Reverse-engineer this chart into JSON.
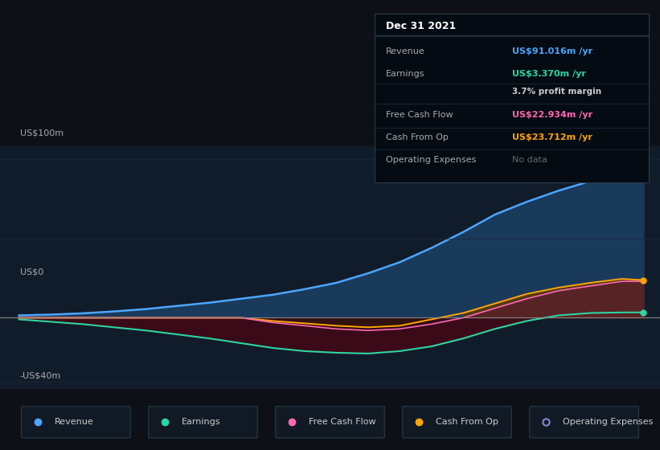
{
  "bg_color": "#0d1117",
  "plot_bg_color": "#111c2b",
  "title": "Dec 31 2021",
  "info_box_rows": [
    {
      "label": "Revenue",
      "value": "US$91.016m",
      "suffix": " /yr",
      "value_color": "#4da6ff",
      "bold_value": true,
      "sub": null
    },
    {
      "label": "Earnings",
      "value": "US$3.370m",
      "suffix": " /yr",
      "value_color": "#2cd5a2",
      "bold_value": true,
      "sub": "3.7% profit margin"
    },
    {
      "label": "Free Cash Flow",
      "value": "US$22.934m",
      "suffix": " /yr",
      "value_color": "#ff69b4",
      "bold_value": true,
      "sub": null
    },
    {
      "label": "Cash From Op",
      "value": "US$23.712m",
      "suffix": " /yr",
      "value_color": "#ffa500",
      "bold_value": true,
      "sub": null
    },
    {
      "label": "Operating Expenses",
      "value": "No data",
      "suffix": "",
      "value_color": "#666666",
      "bold_value": false,
      "sub": null
    }
  ],
  "x_years": [
    2017.0,
    2017.25,
    2017.5,
    2017.75,
    2018.0,
    2018.25,
    2018.5,
    2018.75,
    2019.0,
    2019.25,
    2019.5,
    2019.75,
    2020.0,
    2020.25,
    2020.5,
    2020.75,
    2021.0,
    2021.25,
    2021.5,
    2021.75,
    2021.92
  ],
  "revenue": [
    1.5,
    2.0,
    2.8,
    4.0,
    5.5,
    7.5,
    9.5,
    12.0,
    14.5,
    18.0,
    22.0,
    28.0,
    35.0,
    44.0,
    54.0,
    65.0,
    73.0,
    80.0,
    86.0,
    91.0,
    91.0
  ],
  "earnings": [
    -1.0,
    -2.5,
    -4.0,
    -6.0,
    -8.0,
    -10.5,
    -13.0,
    -16.0,
    -19.0,
    -21.0,
    -22.0,
    -22.5,
    -21.0,
    -18.0,
    -13.0,
    -7.0,
    -2.0,
    1.5,
    3.0,
    3.37,
    3.37
  ],
  "free_cash_flow": [
    0.0,
    0.0,
    0.0,
    0.0,
    0.0,
    0.0,
    0.0,
    0.0,
    -3.0,
    -5.0,
    -7.0,
    -8.0,
    -7.0,
    -4.0,
    0.0,
    6.0,
    12.0,
    17.0,
    20.0,
    22.934,
    22.934
  ],
  "cash_from_op": [
    0.0,
    0.0,
    0.0,
    0.0,
    0.0,
    0.0,
    0.0,
    0.0,
    -2.0,
    -3.5,
    -5.0,
    -6.0,
    -5.0,
    -1.0,
    3.0,
    9.0,
    15.0,
    19.0,
    22.0,
    24.5,
    23.712
  ],
  "ylim": [
    -45,
    108
  ],
  "xlim": [
    2016.85,
    2022.05
  ],
  "y_label_100": "US$100m",
  "y_label_0": "US$0",
  "y_label_n40": "-US$40m",
  "x_ticks": [
    2017,
    2018,
    2019,
    2020,
    2021
  ],
  "revenue_color": "#4da6ff",
  "revenue_fill": "#1a3a5c",
  "earnings_color": "#2cd5a2",
  "earnings_fill": "#0a3028",
  "fcf_color": "#ff69b4",
  "fcf_fill": "#5c1a30",
  "cfo_color": "#ffa500",
  "cfo_fill": "#5c3a00",
  "zero_line_color": "#888888",
  "grid_color": "#1a2a3a",
  "legend_items": [
    {
      "label": "Revenue",
      "color": "#4da6ff",
      "filled": true
    },
    {
      "label": "Earnings",
      "color": "#2cd5a2",
      "filled": true
    },
    {
      "label": "Free Cash Flow",
      "color": "#ff69b4",
      "filled": true
    },
    {
      "label": "Cash From Op",
      "color": "#ffa500",
      "filled": true
    },
    {
      "label": "Operating Expenses",
      "color": "#8888cc",
      "filled": false
    }
  ]
}
